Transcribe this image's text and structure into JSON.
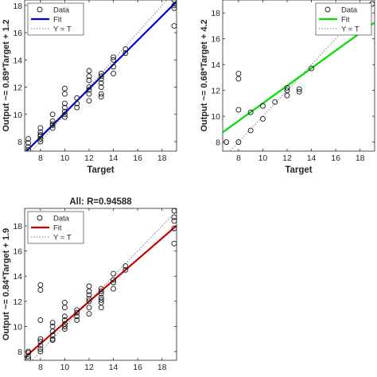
{
  "chart_data": [
    {
      "type": "scatter",
      "title": "",
      "xlabel": "Target",
      "ylabel": "Output ~= 0.89*Target + 1.2",
      "xlim": [
        6.7,
        19.2
      ],
      "ylim": [
        7.3,
        18.4
      ],
      "xticks": [
        "8",
        "10",
        "12",
        "14",
        "16",
        "18"
      ],
      "yticks": [
        "8",
        "10",
        "12",
        "14",
        "16",
        "18"
      ],
      "legend": {
        "position": "top-left",
        "entries": [
          "Data",
          "Fit",
          "Y = T"
        ]
      },
      "fit": {
        "slope": 0.89,
        "intercept": 1.2,
        "color": "#0000cc"
      },
      "series": [
        {
          "name": "Data",
          "x": [
            7,
            7,
            7,
            7,
            8,
            8,
            8,
            8,
            8,
            8,
            9,
            9,
            9,
            9,
            9,
            10,
            10,
            10,
            10,
            10,
            10,
            10,
            11,
            11,
            11,
            12,
            12,
            12,
            12,
            12,
            12,
            12,
            13,
            13,
            13,
            13,
            13,
            13,
            13,
            14,
            14,
            14,
            14,
            15,
            15,
            19,
            19,
            19,
            19
          ],
          "y": [
            7.4,
            7.6,
            7.9,
            8.2,
            8.0,
            8.2,
            8.4,
            8.7,
            9.0,
            8.5,
            9.0,
            9.2,
            9.5,
            10.0,
            9.3,
            9.8,
            10.2,
            10.8,
            11.5,
            11.9,
            10.5,
            10.0,
            10.5,
            10.8,
            11.2,
            11.0,
            11.5,
            12.0,
            12.5,
            12.8,
            13.2,
            11.8,
            11.5,
            12.0,
            12.3,
            12.6,
            13.0,
            11.3,
            12.8,
            13.0,
            13.5,
            14.0,
            14.2,
            14.5,
            14.8,
            16.5,
            17.8,
            18.4,
            18.0
          ]
        }
      ]
    },
    {
      "type": "scatter",
      "title": "",
      "xlabel": "Target",
      "ylabel": "Output ~= 0.68*Target + 4.2",
      "xlim": [
        6.7,
        19.2
      ],
      "ylim": [
        7.3,
        19.0
      ],
      "xticks": [
        "8",
        "10",
        "12",
        "14",
        "16",
        "18"
      ],
      "yticks": [
        "8",
        "10",
        "12",
        "14",
        "16",
        "18"
      ],
      "legend": {
        "position": "top-right",
        "entries": [
          "Data",
          "Fit",
          "Y = T"
        ]
      },
      "fit": {
        "slope": 0.68,
        "intercept": 4.2,
        "color": "#00dd00"
      },
      "series": [
        {
          "name": "Data",
          "x": [
            7,
            8,
            8,
            8,
            8,
            9,
            9,
            10,
            10,
            11,
            12,
            12,
            12,
            13,
            13,
            14,
            19
          ],
          "y": [
            8.0,
            8.0,
            10.5,
            12.9,
            13.3,
            10.3,
            8.9,
            9.8,
            10.8,
            11.1,
            12.0,
            12.2,
            11.6,
            11.9,
            12.1,
            13.7,
            18.7
          ]
        }
      ]
    },
    {
      "type": "scatter",
      "title": "All: R=0.94588",
      "xlabel": "",
      "ylabel": "Output ~= 0.84*Target + 1.9",
      "xlim": [
        6.7,
        19.2
      ],
      "ylim": [
        7.3,
        19.4
      ],
      "xticks": [
        "8",
        "10",
        "12",
        "14",
        "16",
        "18"
      ],
      "yticks": [
        "8",
        "10",
        "12",
        "14",
        "16",
        "18"
      ],
      "legend": {
        "position": "top-left",
        "entries": [
          "Data",
          "Fit",
          "Y = T"
        ]
      },
      "fit": {
        "slope": 0.84,
        "intercept": 1.9,
        "color": "#cc0000"
      },
      "series": [
        {
          "name": "Data",
          "x": [
            7,
            7,
            7,
            7,
            8,
            8,
            8,
            8,
            8,
            8,
            8,
            8,
            9,
            9,
            9,
            9,
            9,
            9,
            10,
            10,
            10,
            10,
            10,
            10,
            10,
            11,
            11,
            11,
            11,
            12,
            12,
            12,
            12,
            12,
            12,
            12,
            13,
            13,
            13,
            13,
            13,
            13,
            13,
            14,
            14,
            14,
            14,
            15,
            15,
            19,
            19,
            19,
            19,
            19
          ],
          "y": [
            7.4,
            7.6,
            7.9,
            8.0,
            8.0,
            8.2,
            8.5,
            8.8,
            9.0,
            10.5,
            12.9,
            13.3,
            9.0,
            9.3,
            9.6,
            10.0,
            10.3,
            8.9,
            9.8,
            10.2,
            10.8,
            11.5,
            11.9,
            10.5,
            10.0,
            10.5,
            10.8,
            11.1,
            11.3,
            11.0,
            11.5,
            12.0,
            12.2,
            12.5,
            12.8,
            13.2,
            11.5,
            11.9,
            12.3,
            12.6,
            13.0,
            12.1,
            12.8,
            13.0,
            13.5,
            13.7,
            14.2,
            14.5,
            14.8,
            16.6,
            17.8,
            18.4,
            18.7,
            19.2
          ]
        }
      ]
    }
  ]
}
